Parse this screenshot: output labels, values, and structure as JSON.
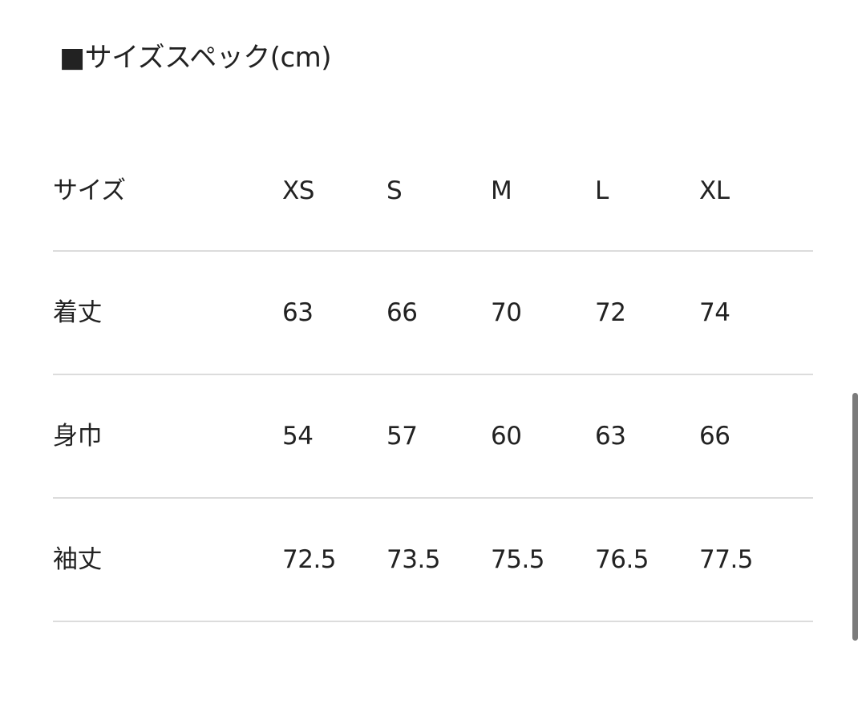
{
  "title": "■サイズスペック(cm)",
  "table": {
    "header": [
      "サイズ",
      "XS",
      "S",
      "M",
      "L",
      "XL"
    ],
    "rows": [
      [
        "着丈",
        "63",
        "66",
        "70",
        "72",
        "74"
      ],
      [
        "身巾",
        "54",
        "57",
        "60",
        "63",
        "66"
      ],
      [
        "袖丈",
        "72.5",
        "73.5",
        "75.5",
        "76.5",
        "77.5"
      ]
    ]
  }
}
